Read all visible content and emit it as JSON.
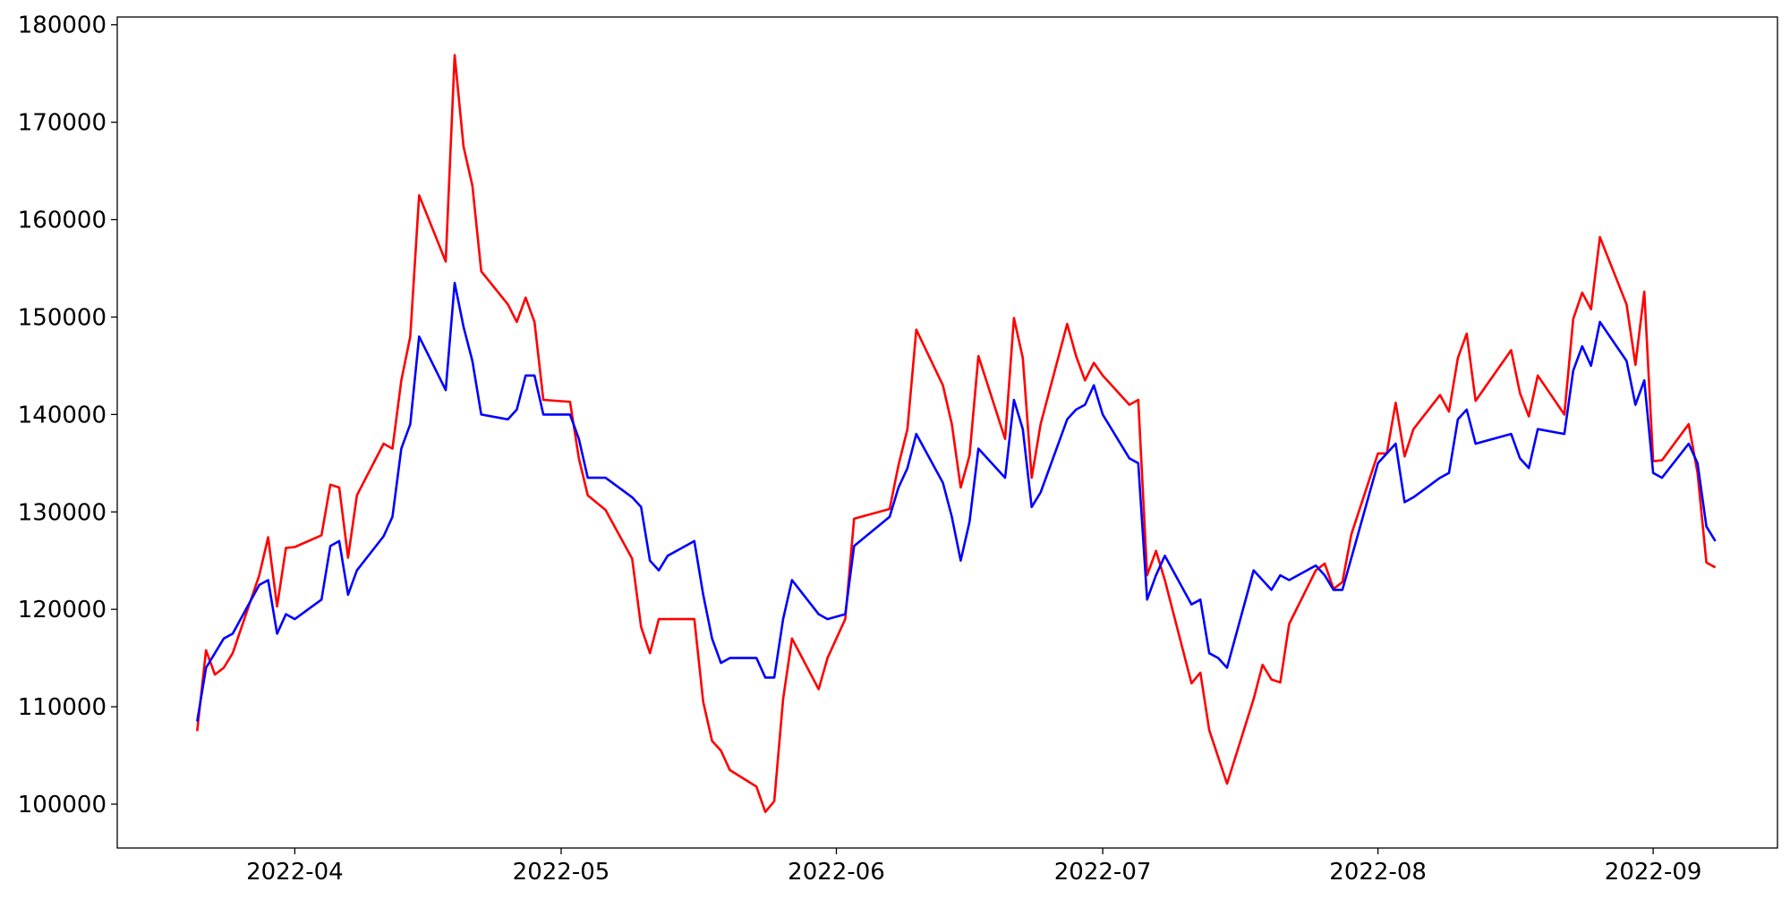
{
  "chart_data": {
    "type": "line",
    "title": "",
    "xlabel": "",
    "ylabel": "",
    "x_range": [
      "2022-03-12",
      "2022-09-15"
    ],
    "ylim": [
      95500,
      180800
    ],
    "grid": false,
    "legend": "none",
    "x_ticks": [
      {
        "date": "2022-04-01",
        "label": "2022-04"
      },
      {
        "date": "2022-05-01",
        "label": "2022-05"
      },
      {
        "date": "2022-06-01",
        "label": "2022-06"
      },
      {
        "date": "2022-07-01",
        "label": "2022-07"
      },
      {
        "date": "2022-08-01",
        "label": "2022-08"
      },
      {
        "date": "2022-09-01",
        "label": "2022-09"
      }
    ],
    "y_ticks": [
      {
        "value": 100000,
        "label": "100000"
      },
      {
        "value": 110000,
        "label": "110000"
      },
      {
        "value": 120000,
        "label": "120000"
      },
      {
        "value": 130000,
        "label": "130000"
      },
      {
        "value": 140000,
        "label": "140000"
      },
      {
        "value": 150000,
        "label": "150000"
      },
      {
        "value": 160000,
        "label": "160000"
      },
      {
        "value": 170000,
        "label": "170000"
      },
      {
        "value": 180000,
        "label": "180000"
      }
    ],
    "series": [
      {
        "color": "#ff0000",
        "points": [
          [
            "2022-03-21",
            107500
          ],
          [
            "2022-03-22",
            115800
          ],
          [
            "2022-03-23",
            113300
          ],
          [
            "2022-03-24",
            114000
          ],
          [
            "2022-03-25",
            115500
          ],
          [
            "2022-03-28",
            123500
          ],
          [
            "2022-03-29",
            127400
          ],
          [
            "2022-03-30",
            120300
          ],
          [
            "2022-03-31",
            126300
          ],
          [
            "2022-04-01",
            126400
          ],
          [
            "2022-04-04",
            127600
          ],
          [
            "2022-04-05",
            132800
          ],
          [
            "2022-04-06",
            132500
          ],
          [
            "2022-04-07",
            125300
          ],
          [
            "2022-04-08",
            131700
          ],
          [
            "2022-04-11",
            137000
          ],
          [
            "2022-04-12",
            136500
          ],
          [
            "2022-04-13",
            143500
          ],
          [
            "2022-04-14",
            148000
          ],
          [
            "2022-04-15",
            162500
          ],
          [
            "2022-04-18",
            155700
          ],
          [
            "2022-04-19",
            176900
          ],
          [
            "2022-04-20",
            167500
          ],
          [
            "2022-04-21",
            163500
          ],
          [
            "2022-04-22",
            154700
          ],
          [
            "2022-04-25",
            151300
          ],
          [
            "2022-04-26",
            149500
          ],
          [
            "2022-04-27",
            152000
          ],
          [
            "2022-04-28",
            149500
          ],
          [
            "2022-04-29",
            141500
          ],
          [
            "2022-05-02",
            141300
          ],
          [
            "2022-05-03",
            135500
          ],
          [
            "2022-05-04",
            131700
          ],
          [
            "2022-05-06",
            130200
          ],
          [
            "2022-05-09",
            125200
          ],
          [
            "2022-05-10",
            118200
          ],
          [
            "2022-05-11",
            115500
          ],
          [
            "2022-05-12",
            119000
          ],
          [
            "2022-05-13",
            119000
          ],
          [
            "2022-05-16",
            119000
          ],
          [
            "2022-05-17",
            110500
          ],
          [
            "2022-05-18",
            106500
          ],
          [
            "2022-05-19",
            105500
          ],
          [
            "2022-05-20",
            103500
          ],
          [
            "2022-05-23",
            101800
          ],
          [
            "2022-05-24",
            99200
          ],
          [
            "2022-05-25",
            100300
          ],
          [
            "2022-05-26",
            110800
          ],
          [
            "2022-05-27",
            117000
          ],
          [
            "2022-05-30",
            111800
          ],
          [
            "2022-05-31",
            115000
          ],
          [
            "2022-06-02",
            119000
          ],
          [
            "2022-06-03",
            129300
          ],
          [
            "2022-06-07",
            130300
          ],
          [
            "2022-06-08",
            134800
          ],
          [
            "2022-06-09",
            138500
          ],
          [
            "2022-06-10",
            148700
          ],
          [
            "2022-06-13",
            143000
          ],
          [
            "2022-06-14",
            139000
          ],
          [
            "2022-06-15",
            132500
          ],
          [
            "2022-06-16",
            135800
          ],
          [
            "2022-06-17",
            146000
          ],
          [
            "2022-06-20",
            137500
          ],
          [
            "2022-06-21",
            149900
          ],
          [
            "2022-06-22",
            145800
          ],
          [
            "2022-06-23",
            133500
          ],
          [
            "2022-06-24",
            139000
          ],
          [
            "2022-06-27",
            149300
          ],
          [
            "2022-06-28",
            146000
          ],
          [
            "2022-06-29",
            143500
          ],
          [
            "2022-06-30",
            145300
          ],
          [
            "2022-07-01",
            144000
          ],
          [
            "2022-07-04",
            141000
          ],
          [
            "2022-07-05",
            141500
          ],
          [
            "2022-07-06",
            123500
          ],
          [
            "2022-07-07",
            126000
          ],
          [
            "2022-07-08",
            123000
          ],
          [
            "2022-07-11",
            112400
          ],
          [
            "2022-07-12",
            113500
          ],
          [
            "2022-07-13",
            107600
          ],
          [
            "2022-07-15",
            102100
          ],
          [
            "2022-07-18",
            110800
          ],
          [
            "2022-07-19",
            114300
          ],
          [
            "2022-07-20",
            112800
          ],
          [
            "2022-07-21",
            112500
          ],
          [
            "2022-07-22",
            118500
          ],
          [
            "2022-07-25",
            124000
          ],
          [
            "2022-07-26",
            124700
          ],
          [
            "2022-07-27",
            122100
          ],
          [
            "2022-07-28",
            122800
          ],
          [
            "2022-07-29",
            127700
          ],
          [
            "2022-08-01",
            136000
          ],
          [
            "2022-08-02",
            136000
          ],
          [
            "2022-08-03",
            141200
          ],
          [
            "2022-08-04",
            135700
          ],
          [
            "2022-08-05",
            138500
          ],
          [
            "2022-08-08",
            142000
          ],
          [
            "2022-08-09",
            140300
          ],
          [
            "2022-08-10",
            145800
          ],
          [
            "2022-08-11",
            148300
          ],
          [
            "2022-08-12",
            141400
          ],
          [
            "2022-08-16",
            146600
          ],
          [
            "2022-08-17",
            142200
          ],
          [
            "2022-08-18",
            139800
          ],
          [
            "2022-08-19",
            144000
          ],
          [
            "2022-08-22",
            140000
          ],
          [
            "2022-08-23",
            149800
          ],
          [
            "2022-08-24",
            152500
          ],
          [
            "2022-08-25",
            150800
          ],
          [
            "2022-08-26",
            158200
          ],
          [
            "2022-08-29",
            151300
          ],
          [
            "2022-08-30",
            145100
          ],
          [
            "2022-08-31",
            152600
          ],
          [
            "2022-09-01",
            135200
          ],
          [
            "2022-09-02",
            135300
          ],
          [
            "2022-09-05",
            139000
          ],
          [
            "2022-09-06",
            134000
          ],
          [
            "2022-09-07",
            124800
          ],
          [
            "2022-09-08",
            124300
          ]
        ]
      },
      {
        "color": "#0000ff",
        "points": [
          [
            "2022-03-21",
            108500
          ],
          [
            "2022-03-22",
            114000
          ],
          [
            "2022-03-23",
            115500
          ],
          [
            "2022-03-24",
            117000
          ],
          [
            "2022-03-25",
            117500
          ],
          [
            "2022-03-28",
            122500
          ],
          [
            "2022-03-29",
            123000
          ],
          [
            "2022-03-30",
            117500
          ],
          [
            "2022-03-31",
            119500
          ],
          [
            "2022-04-01",
            119000
          ],
          [
            "2022-04-04",
            121000
          ],
          [
            "2022-04-05",
            126500
          ],
          [
            "2022-04-06",
            127000
          ],
          [
            "2022-04-07",
            121500
          ],
          [
            "2022-04-08",
            124000
          ],
          [
            "2022-04-11",
            127500
          ],
          [
            "2022-04-12",
            129500
          ],
          [
            "2022-04-13",
            136500
          ],
          [
            "2022-04-14",
            139000
          ],
          [
            "2022-04-15",
            148000
          ],
          [
            "2022-04-18",
            142500
          ],
          [
            "2022-04-19",
            153500
          ],
          [
            "2022-04-20",
            149000
          ],
          [
            "2022-04-21",
            145500
          ],
          [
            "2022-04-22",
            140000
          ],
          [
            "2022-04-25",
            139500
          ],
          [
            "2022-04-26",
            140500
          ],
          [
            "2022-04-27",
            144000
          ],
          [
            "2022-04-28",
            144000
          ],
          [
            "2022-04-29",
            140000
          ],
          [
            "2022-05-02",
            140000
          ],
          [
            "2022-05-03",
            137500
          ],
          [
            "2022-05-04",
            133500
          ],
          [
            "2022-05-06",
            133500
          ],
          [
            "2022-05-09",
            131500
          ],
          [
            "2022-05-10",
            130500
          ],
          [
            "2022-05-11",
            125000
          ],
          [
            "2022-05-12",
            124000
          ],
          [
            "2022-05-13",
            125500
          ],
          [
            "2022-05-16",
            127000
          ],
          [
            "2022-05-17",
            121500
          ],
          [
            "2022-05-18",
            117000
          ],
          [
            "2022-05-19",
            114500
          ],
          [
            "2022-05-20",
            115000
          ],
          [
            "2022-05-23",
            115000
          ],
          [
            "2022-05-24",
            113000
          ],
          [
            "2022-05-25",
            113000
          ],
          [
            "2022-05-26",
            119000
          ],
          [
            "2022-05-27",
            123000
          ],
          [
            "2022-05-30",
            119500
          ],
          [
            "2022-05-31",
            119000
          ],
          [
            "2022-06-02",
            119500
          ],
          [
            "2022-06-03",
            126500
          ],
          [
            "2022-06-07",
            129500
          ],
          [
            "2022-06-08",
            132500
          ],
          [
            "2022-06-09",
            134500
          ],
          [
            "2022-06-10",
            138000
          ],
          [
            "2022-06-13",
            133000
          ],
          [
            "2022-06-14",
            129500
          ],
          [
            "2022-06-15",
            125000
          ],
          [
            "2022-06-16",
            129000
          ],
          [
            "2022-06-17",
            136500
          ],
          [
            "2022-06-20",
            133500
          ],
          [
            "2022-06-21",
            141500
          ],
          [
            "2022-06-22",
            138500
          ],
          [
            "2022-06-23",
            130500
          ],
          [
            "2022-06-24",
            132000
          ],
          [
            "2022-06-27",
            139500
          ],
          [
            "2022-06-28",
            140500
          ],
          [
            "2022-06-29",
            141000
          ],
          [
            "2022-06-30",
            143000
          ],
          [
            "2022-07-01",
            140000
          ],
          [
            "2022-07-04",
            135500
          ],
          [
            "2022-07-05",
            135000
          ],
          [
            "2022-07-06",
            121000
          ],
          [
            "2022-07-07",
            123500
          ],
          [
            "2022-07-08",
            125500
          ],
          [
            "2022-07-11",
            120500
          ],
          [
            "2022-07-12",
            121000
          ],
          [
            "2022-07-13",
            115500
          ],
          [
            "2022-07-14",
            115000
          ],
          [
            "2022-07-15",
            114000
          ],
          [
            "2022-07-18",
            124000
          ],
          [
            "2022-07-20",
            122000
          ],
          [
            "2022-07-21",
            123500
          ],
          [
            "2022-07-22",
            123000
          ],
          [
            "2022-07-25",
            124500
          ],
          [
            "2022-07-26",
            123500
          ],
          [
            "2022-07-27",
            122000
          ],
          [
            "2022-07-28",
            122000
          ],
          [
            "2022-08-01",
            135000
          ],
          [
            "2022-08-02",
            136000
          ],
          [
            "2022-08-03",
            137000
          ],
          [
            "2022-08-04",
            131000
          ],
          [
            "2022-08-05",
            131500
          ],
          [
            "2022-08-08",
            133500
          ],
          [
            "2022-08-09",
            134000
          ],
          [
            "2022-08-10",
            139500
          ],
          [
            "2022-08-11",
            140500
          ],
          [
            "2022-08-12",
            137000
          ],
          [
            "2022-08-16",
            138000
          ],
          [
            "2022-08-17",
            135500
          ],
          [
            "2022-08-18",
            134500
          ],
          [
            "2022-08-19",
            138500
          ],
          [
            "2022-08-22",
            138000
          ],
          [
            "2022-08-23",
            144500
          ],
          [
            "2022-08-24",
            147000
          ],
          [
            "2022-08-25",
            145000
          ],
          [
            "2022-08-26",
            149500
          ],
          [
            "2022-08-29",
            145500
          ],
          [
            "2022-08-30",
            141000
          ],
          [
            "2022-08-31",
            143500
          ],
          [
            "2022-09-01",
            134000
          ],
          [
            "2022-09-02",
            133500
          ],
          [
            "2022-09-05",
            137000
          ],
          [
            "2022-09-06",
            135000
          ],
          [
            "2022-09-07",
            128500
          ],
          [
            "2022-09-08",
            127000
          ]
        ]
      }
    ]
  }
}
